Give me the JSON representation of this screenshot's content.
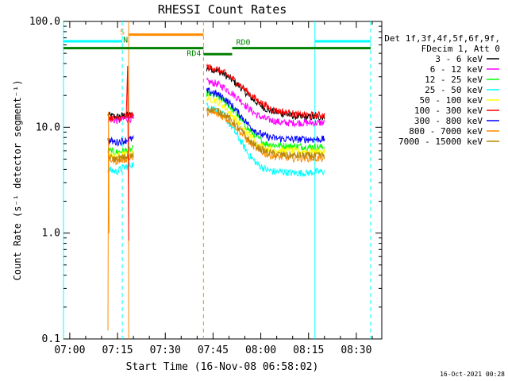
{
  "chart_data": {
    "type": "line",
    "title": "RHESSI Count Rates",
    "xlabel": "Start Time (16-Nov-08 06:58:02)",
    "ylabel": "Count Rate (s⁻¹ detector segment⁻¹)",
    "yscale": "log",
    "ylim": [
      0.1,
      100.0
    ],
    "xlim": [
      "06:58:02",
      "08:38:00"
    ],
    "x_ticks": [
      "07:00",
      "07:15",
      "07:30",
      "07:45",
      "08:00",
      "08:15",
      "08:30"
    ],
    "y_ticks": [
      "0.1",
      "1.0",
      "10.0",
      "100.0"
    ],
    "grid": false,
    "legend_position": "right",
    "legend_header": [
      "Det 1f,3f,4f,5f,6f,9f,",
      "FDecim 1, Att 0"
    ],
    "timestamp": "16-Oct-2021 00:28",
    "series": [
      {
        "name": "3 - 6 keV",
        "color": "#000000",
        "segments": [
          {
            "start": "07:12",
            "end": "07:20",
            "values": [
              13,
              12.5,
              13,
              13
            ]
          },
          {
            "start": "07:43",
            "end": "08:20",
            "values": [
              36,
              35,
              32,
              28,
              24,
              20,
              17,
              15,
              14,
              13.5,
              13,
              12.5,
              12.5,
              12.5,
              12.5
            ]
          }
        ]
      },
      {
        "name": "6 - 12 keV",
        "color": "#ff00ff",
        "segments": [
          {
            "start": "07:12",
            "end": "07:20",
            "values": [
              12,
              11.5,
              12,
              12
            ]
          },
          {
            "start": "07:43",
            "end": "08:20",
            "values": [
              27,
              26,
              24,
              21,
              18,
              15,
              13,
              12,
              11.5,
              11,
              11,
              11,
              11,
              11,
              11
            ]
          }
        ]
      },
      {
        "name": "12 - 25 keV",
        "color": "#00ff00",
        "segments": [
          {
            "start": "07:12",
            "end": "07:20",
            "values": [
              6.0,
              5.8,
              6.0,
              6.2
            ]
          },
          {
            "start": "07:43",
            "end": "08:20",
            "values": [
              21,
              20,
              18,
              15,
              12,
              9.5,
              8,
              7,
              6.8,
              6.7,
              6.6,
              6.6,
              6.5,
              6.5,
              6.5
            ]
          }
        ]
      },
      {
        "name": "25 - 50 keV",
        "color": "#00ffff",
        "segments": [
          {
            "start": "07:12",
            "end": "07:20",
            "values": [
              4.0,
              3.8,
              4.2,
              4.5
            ]
          },
          {
            "start": "07:43",
            "end": "08:20",
            "values": [
              16,
              15,
              13,
              10,
              7.5,
              5.5,
              4.5,
              4.0,
              3.8,
              3.8,
              3.7,
              3.7,
              3.7,
              3.8,
              3.8
            ]
          }
        ]
      },
      {
        "name": "50 - 100 keV",
        "color": "#ffff00",
        "segments": [
          {
            "start": "07:12",
            "end": "07:20",
            "values": [
              5.5,
              5.3,
              5.5,
              5.7
            ]
          },
          {
            "start": "07:43",
            "end": "08:20",
            "values": [
              19,
              18,
              16,
              13,
              10.5,
              8.5,
              7,
              6.3,
              6.1,
              6.0,
              6.0,
              5.9,
              5.9,
              5.9,
              5.9
            ]
          }
        ]
      },
      {
        "name": "100 - 300 keV",
        "color": "#ff0000",
        "segments": [
          {
            "start": "07:12",
            "end": "07:20",
            "values": [
              12.5,
              12,
              12.5,
              13
            ]
          },
          {
            "start": "07:43",
            "end": "08:20",
            "values": [
              37,
              36,
              33,
              29,
              25,
              21,
              18,
              16,
              14.5,
              14,
              13.5,
              13,
              13,
              13,
              13
            ]
          }
        ]
      },
      {
        "name": "300 - 800 keV",
        "color": "#0000ff",
        "segments": [
          {
            "start": "07:12",
            "end": "07:20",
            "values": [
              7.5,
              7.2,
              7.5,
              7.8
            ]
          },
          {
            "start": "07:43",
            "end": "08:20",
            "values": [
              22,
              21,
              19,
              16,
              13,
              10.5,
              9,
              8.2,
              7.9,
              7.8,
              7.7,
              7.7,
              7.7,
              7.7,
              7.7
            ]
          }
        ]
      },
      {
        "name": "800 - 7000 keV",
        "color": "#ff8c00",
        "segments": [
          {
            "start": "07:12",
            "end": "07:20",
            "values": [
              5.0,
              4.8,
              5.0,
              5.2
            ]
          },
          {
            "start": "07:43",
            "end": "08:20",
            "values": [
              14,
              13.5,
              12.5,
              11,
              9,
              7.3,
              6.2,
              5.6,
              5.3,
              5.2,
              5.1,
              5.1,
              5.1,
              5.1,
              5.1
            ]
          }
        ]
      },
      {
        "name": "7000 - 15000 keV",
        "color": "#b8860b",
        "segments": [
          {
            "start": "07:12",
            "end": "07:20",
            "values": [
              5.2,
              5.0,
              5.2,
              5.4
            ]
          },
          {
            "start": "07:43",
            "end": "08:20",
            "values": [
              15,
              14.5,
              13.5,
              11.5,
              9.5,
              7.6,
              6.5,
              5.9,
              5.6,
              5.5,
              5.4,
              5.4,
              5.4,
              5.4,
              5.4
            ]
          }
        ]
      }
    ],
    "markers": [
      {
        "time": "06:58:02",
        "color": "#00ffff",
        "style": "solid"
      },
      {
        "time": "07:16:30",
        "color": "#00ffff",
        "style": "dashed"
      },
      {
        "time": "07:18:30",
        "color": "#ff8c00",
        "style": "solid"
      },
      {
        "time": "07:42:00",
        "color": "#ff8c00",
        "style": "dashed"
      },
      {
        "time": "08:17:00",
        "color": "#00ffff",
        "style": "solid"
      },
      {
        "time": "08:34:30",
        "color": "#00ffff",
        "style": "dashed"
      }
    ],
    "bars": [
      {
        "start": "06:58:02",
        "end": "07:16:30",
        "level": 65,
        "color": "#00ffff",
        "label": ""
      },
      {
        "start": "08:17:00",
        "end": "08:34:30",
        "level": 65,
        "color": "#00ffff",
        "label": ""
      },
      {
        "start": "07:18:30",
        "end": "07:42:00",
        "level": 75,
        "color": "#ff8c00",
        "label": "S"
      },
      {
        "start": "06:58:02",
        "end": "07:42:00",
        "level": 56,
        "color": "#008000",
        "label": "N"
      },
      {
        "start": "07:42:00",
        "end": "07:51:00",
        "level": 49,
        "color": "#008000",
        "label": "RD4"
      },
      {
        "start": "07:51:00",
        "end": "08:34:30",
        "level": 56,
        "color": "#008000",
        "label": "RD0"
      }
    ]
  }
}
